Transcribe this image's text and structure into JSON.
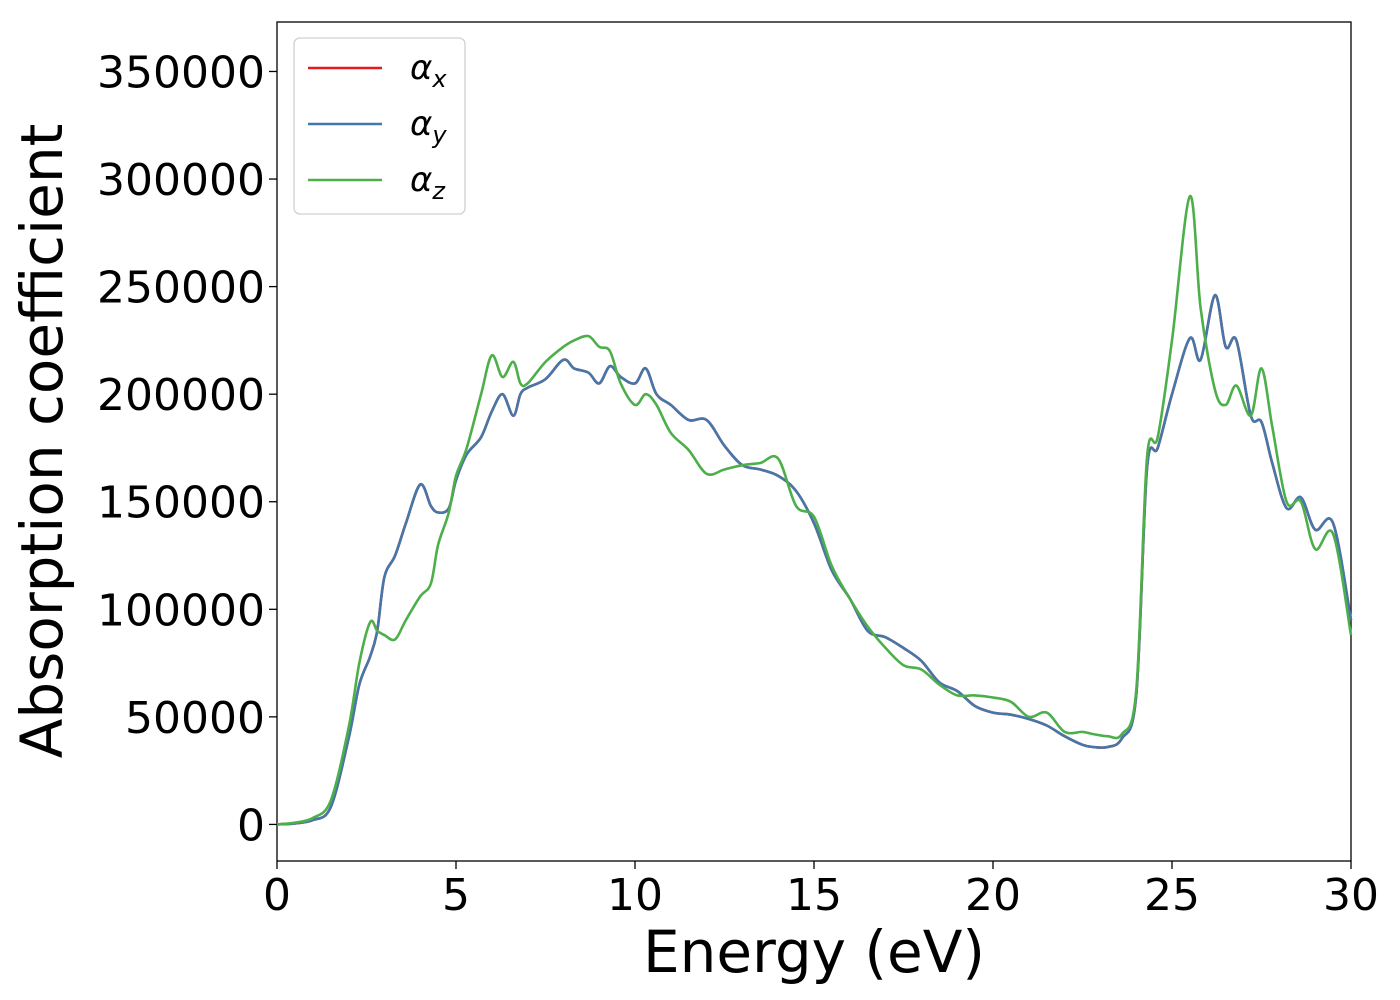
{
  "chart_data": {
    "type": "line",
    "title": "",
    "xlabel": "Energy (eV)",
    "ylabel": "Absorption coefficient",
    "xlim": [
      0,
      30
    ],
    "ylim": [
      -17000,
      373000
    ],
    "xticks": [
      "0",
      "5",
      "10",
      "15",
      "20",
      "25",
      "30"
    ],
    "yticks": [
      "0",
      "50000",
      "100000",
      "150000",
      "200000",
      "250000",
      "300000",
      "350000"
    ],
    "grid": false,
    "legend_position": "top-left",
    "series": [
      {
        "name": "α_x",
        "base": "α",
        "sub": "x",
        "color": "#e41a1c",
        "x": [
          0,
          0.5,
          1,
          1.5,
          2,
          2.3,
          2.6,
          2.8,
          3,
          3.3,
          3.6,
          4,
          4.3,
          4.5,
          4.8,
          5,
          5.3,
          5.7,
          6,
          6.3,
          6.6,
          6.8,
          7,
          7.5,
          8,
          8.3,
          8.7,
          9,
          9.3,
          9.6,
          10,
          10.3,
          10.6,
          11,
          11.5,
          12,
          12.5,
          13,
          13.5,
          14,
          14.5,
          15,
          15.5,
          16,
          16.5,
          17,
          17.5,
          18,
          18.5,
          19,
          19.5,
          20,
          20.5,
          21,
          21.5,
          22,
          22.5,
          22.8,
          23.2,
          23.6,
          24,
          24.3,
          24.6,
          25,
          25.5,
          25.8,
          26.2,
          26.5,
          26.8,
          27.2,
          27.5,
          27.8,
          28.2,
          28.6,
          29,
          29.5,
          30
        ],
        "y": [
          0,
          500,
          2000,
          8000,
          40000,
          65000,
          78000,
          90000,
          115000,
          125000,
          140000,
          158000,
          148000,
          145000,
          147000,
          160000,
          172000,
          180000,
          192000,
          200000,
          190000,
          200000,
          203000,
          207000,
          216000,
          212000,
          210000,
          205000,
          213000,
          208000,
          205000,
          212000,
          200000,
          195000,
          188000,
          188000,
          176000,
          167000,
          165000,
          162000,
          155000,
          140000,
          118000,
          105000,
          90000,
          87000,
          82000,
          76000,
          66000,
          62000,
          55000,
          52000,
          51000,
          49000,
          46000,
          41000,
          37000,
          36000,
          36000,
          40000,
          60000,
          165000,
          175000,
          200000,
          226000,
          216000,
          246000,
          222000,
          225000,
          190000,
          187000,
          168000,
          147000,
          152000,
          137000,
          140000,
          95000
        ]
      },
      {
        "name": "α_y",
        "base": "α",
        "sub": "y",
        "color": "#4477aa",
        "x": [
          0,
          0.5,
          1,
          1.5,
          2,
          2.3,
          2.6,
          2.8,
          3,
          3.3,
          3.6,
          4,
          4.3,
          4.5,
          4.8,
          5,
          5.3,
          5.7,
          6,
          6.3,
          6.6,
          6.8,
          7,
          7.5,
          8,
          8.3,
          8.7,
          9,
          9.3,
          9.6,
          10,
          10.3,
          10.6,
          11,
          11.5,
          12,
          12.5,
          13,
          13.5,
          14,
          14.5,
          15,
          15.5,
          16,
          16.5,
          17,
          17.5,
          18,
          18.5,
          19,
          19.5,
          20,
          20.5,
          21,
          21.5,
          22,
          22.5,
          22.8,
          23.2,
          23.6,
          24,
          24.3,
          24.6,
          25,
          25.5,
          25.8,
          26.2,
          26.5,
          26.8,
          27.2,
          27.5,
          27.8,
          28.2,
          28.6,
          29,
          29.5,
          30
        ],
        "y": [
          0,
          500,
          2000,
          8000,
          40000,
          65000,
          78000,
          90000,
          115000,
          125000,
          140000,
          158000,
          148000,
          145000,
          147000,
          160000,
          172000,
          180000,
          192000,
          200000,
          190000,
          200000,
          203000,
          207000,
          216000,
          212000,
          210000,
          205000,
          213000,
          208000,
          205000,
          212000,
          200000,
          195000,
          188000,
          188000,
          176000,
          167000,
          165000,
          162000,
          155000,
          140000,
          118000,
          105000,
          90000,
          87000,
          82000,
          76000,
          66000,
          62000,
          55000,
          52000,
          51000,
          49000,
          46000,
          41000,
          37000,
          36000,
          36000,
          40000,
          60000,
          165000,
          175000,
          200000,
          226000,
          216000,
          246000,
          222000,
          225000,
          190000,
          187000,
          168000,
          147000,
          152000,
          137000,
          140000,
          95000
        ]
      },
      {
        "name": "α_z",
        "base": "α",
        "sub": "z",
        "color": "#4daf4a",
        "x": [
          0,
          0.5,
          1,
          1.5,
          2,
          2.3,
          2.6,
          2.8,
          3,
          3.3,
          3.6,
          4,
          4.3,
          4.5,
          4.8,
          5,
          5.3,
          5.7,
          6,
          6.3,
          6.6,
          6.8,
          7,
          7.5,
          8,
          8.3,
          8.7,
          9,
          9.3,
          9.6,
          10,
          10.3,
          10.6,
          11,
          11.5,
          12,
          12.5,
          13,
          13.5,
          14,
          14.5,
          15,
          15.5,
          16,
          16.5,
          17,
          17.5,
          18,
          18.5,
          19,
          19.5,
          20,
          20.5,
          21,
          21.5,
          22,
          22.5,
          22.8,
          23.2,
          23.6,
          24,
          24.3,
          24.6,
          25,
          25.5,
          25.8,
          26.2,
          26.5,
          26.8,
          27.2,
          27.5,
          27.8,
          28.2,
          28.6,
          29,
          29.5,
          30
        ],
        "y": [
          0,
          800,
          3000,
          11000,
          45000,
          75000,
          94000,
          90000,
          88000,
          86000,
          95000,
          106000,
          112000,
          130000,
          145000,
          162000,
          175000,
          200000,
          218000,
          208000,
          215000,
          205000,
          205000,
          215000,
          222000,
          225000,
          227000,
          222000,
          220000,
          205000,
          195000,
          200000,
          195000,
          182000,
          174000,
          163000,
          165000,
          167000,
          168000,
          170000,
          148000,
          143000,
          120000,
          105000,
          92000,
          82000,
          74000,
          72000,
          65000,
          60000,
          60000,
          59000,
          57000,
          50000,
          52000,
          43000,
          43000,
          42000,
          41000,
          42000,
          62000,
          170000,
          180000,
          225000,
          292000,
          240000,
          202000,
          195000,
          204000,
          190000,
          212000,
          185000,
          150000,
          150000,
          128000,
          135000,
          88000
        ]
      }
    ]
  }
}
